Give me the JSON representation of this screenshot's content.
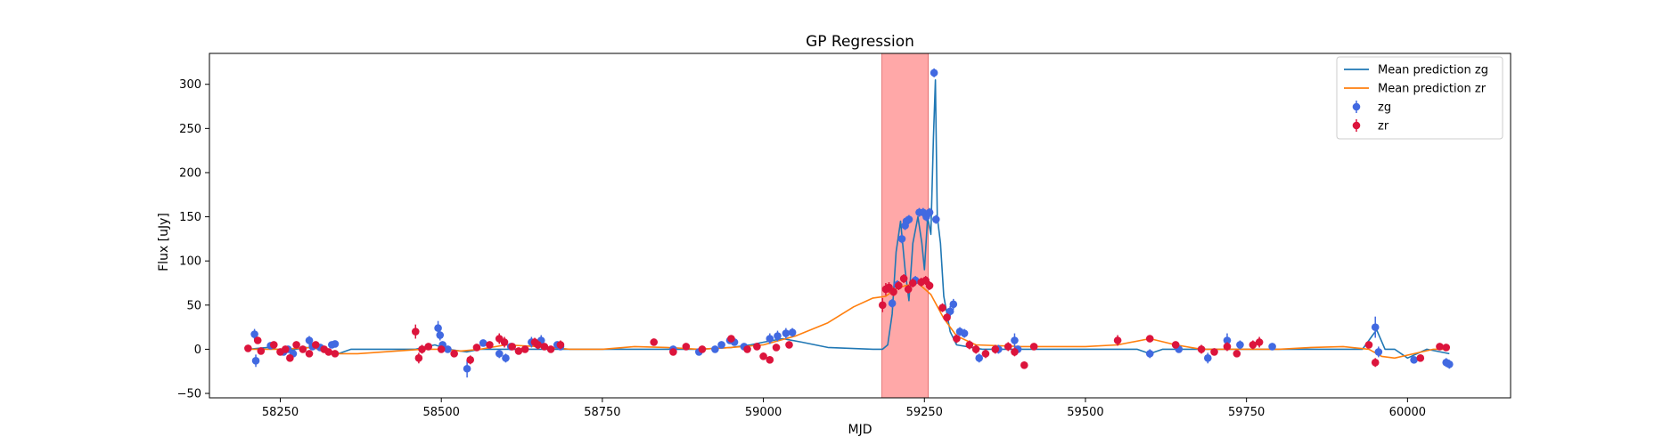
{
  "chart_data": {
    "type": "line",
    "title": "GP Regression",
    "xlabel": "MJD",
    "ylabel": "Flux [uJy]",
    "xlim": [
      58140,
      60160
    ],
    "ylim": [
      -55,
      335
    ],
    "xticks": [
      58250,
      58500,
      58750,
      59000,
      59250,
      59500,
      59750,
      60000
    ],
    "yticks": [
      -50,
      0,
      50,
      100,
      150,
      200,
      250,
      300
    ],
    "grid": false,
    "legend_position": "top-right",
    "highlight_span": {
      "x": [
        59184,
        59256
      ],
      "color": "#ff9e9e"
    },
    "colors": {
      "zg_line": "#1f77b4",
      "zr_line": "#ff7f0e",
      "zg_points": "#4169e1",
      "zr_points": "#dc143c"
    },
    "legend": [
      {
        "label": "Mean prediction zg",
        "kind": "line",
        "color": "#1f77b4"
      },
      {
        "label": "Mean prediction zr",
        "kind": "line",
        "color": "#ff7f0e"
      },
      {
        "label": "zg",
        "kind": "errorbar",
        "color": "#4169e1"
      },
      {
        "label": "zr",
        "kind": "errorbar",
        "color": "#dc143c"
      }
    ],
    "series": [
      {
        "name": "Mean prediction zg",
        "kind": "line",
        "color": "#1f77b4",
        "x": [
          58200,
          58230,
          58260,
          58290,
          58320,
          58340,
          58360,
          58460,
          58490,
          58510,
          58540,
          58560,
          58620,
          58680,
          58700,
          58800,
          58900,
          58950,
          58980,
          59000,
          59030,
          59060,
          59100,
          59170,
          59185,
          59193,
          59200,
          59206,
          59213,
          59220,
          59226,
          59232,
          59240,
          59246,
          59250,
          59255,
          59260,
          59264,
          59267,
          59270,
          59275,
          59280,
          59290,
          59300,
          59340,
          59400,
          59500,
          59580,
          59600,
          59620,
          59680,
          59720,
          59760,
          59800,
          59900,
          59930,
          59945,
          59952,
          59965,
          59980,
          60000,
          60030,
          60065
        ],
        "y": [
          0,
          2,
          -2,
          2,
          0,
          -5,
          0,
          0,
          5,
          0,
          -3,
          0,
          0,
          0,
          0,
          0,
          0,
          2,
          5,
          8,
          12,
          8,
          2,
          0,
          0,
          5,
          40,
          110,
          145,
          90,
          55,
          120,
          150,
          120,
          90,
          150,
          130,
          240,
          305,
          150,
          120,
          60,
          20,
          5,
          0,
          0,
          0,
          0,
          -5,
          0,
          0,
          0,
          0,
          0,
          0,
          0,
          15,
          22,
          0,
          0,
          -10,
          0,
          -5
        ]
      },
      {
        "name": "Mean prediction zr",
        "kind": "line",
        "color": "#ff7f0e",
        "x": [
          58200,
          58250,
          58300,
          58330,
          58370,
          58430,
          58470,
          58500,
          58530,
          58560,
          58600,
          58650,
          58700,
          58750,
          58800,
          58850,
          58900,
          58950,
          59000,
          59050,
          59100,
          59140,
          59170,
          59190,
          59205,
          59220,
          59240,
          59260,
          59280,
          59300,
          59330,
          59400,
          59500,
          59550,
          59600,
          59640,
          59680,
          59720,
          59760,
          59800,
          59850,
          59900,
          59940,
          59960,
          59980,
          60010,
          60040,
          60065
        ],
        "y": [
          0,
          0,
          2,
          -5,
          -5,
          -2,
          0,
          0,
          -2,
          0,
          5,
          3,
          0,
          0,
          3,
          2,
          0,
          2,
          5,
          15,
          30,
          48,
          58,
          60,
          68,
          72,
          75,
          62,
          35,
          15,
          5,
          3,
          3,
          5,
          12,
          5,
          0,
          0,
          0,
          0,
          2,
          3,
          0,
          -8,
          -10,
          -5,
          0,
          0
        ]
      },
      {
        "name": "zg",
        "kind": "errorbar",
        "color": "#4169e1",
        "x": [
          58210,
          58212,
          58235,
          58255,
          58262,
          58270,
          58295,
          58300,
          58312,
          58330,
          58335,
          58495,
          58498,
          58502,
          58510,
          58540,
          58565,
          58590,
          58600,
          58608,
          58640,
          58655,
          58680,
          58685,
          58860,
          58900,
          58925,
          58935,
          58948,
          58955,
          58970,
          59010,
          59022,
          59035,
          59045,
          59200,
          59208,
          59215,
          59220,
          59222,
          59226,
          59236,
          59242,
          59248,
          59253,
          59258,
          59265,
          59268,
          59290,
          59295,
          59305,
          59312,
          59335,
          59365,
          59390,
          59395,
          59600,
          59645,
          59690,
          59720,
          59740,
          59790,
          59950,
          59955,
          60010,
          60060,
          60065
        ],
        "y": [
          17,
          -13,
          4,
          -3,
          0,
          -5,
          10,
          3,
          2,
          5,
          6,
          24,
          16,
          5,
          0,
          -22,
          7,
          -5,
          -10,
          3,
          8,
          10,
          5,
          3,
          0,
          -3,
          0,
          5,
          10,
          8,
          3,
          12,
          15,
          18,
          19,
          52,
          73,
          125,
          140,
          145,
          147,
          78,
          155,
          155,
          150,
          155,
          313,
          147,
          43,
          51,
          20,
          18,
          -10,
          0,
          10,
          0,
          -5,
          0,
          -10,
          10,
          5,
          3,
          25,
          -3,
          -12,
          -15,
          -17
        ],
        "yerr": [
          6,
          7,
          3,
          3,
          3,
          3,
          5,
          3,
          3,
          4,
          4,
          8,
          6,
          3,
          3,
          10,
          4,
          5,
          5,
          3,
          6,
          6,
          4,
          3,
          3,
          3,
          3,
          3,
          4,
          3,
          3,
          6,
          6,
          6,
          5,
          5,
          5,
          5,
          5,
          5,
          5,
          5,
          5,
          5,
          5,
          5,
          5,
          5,
          6,
          6,
          5,
          5,
          5,
          5,
          8,
          4,
          5,
          4,
          6,
          8,
          5,
          4,
          12,
          6,
          3,
          5,
          5
        ]
      },
      {
        "name": "zr",
        "kind": "errorbar",
        "color": "#dc143c",
        "x": [
          58200,
          58215,
          58220,
          58240,
          58250,
          58258,
          58265,
          58275,
          58285,
          58295,
          58305,
          58318,
          58325,
          58335,
          58460,
          58465,
          58470,
          58480,
          58500,
          58520,
          58545,
          58555,
          58575,
          58590,
          58598,
          58610,
          58620,
          58630,
          58645,
          58650,
          58660,
          58670,
          58685,
          58830,
          58860,
          58880,
          58905,
          58950,
          58975,
          58990,
          59000,
          59010,
          59020,
          59040,
          59185,
          59190,
          59195,
          59202,
          59210,
          59218,
          59225,
          59232,
          59245,
          59252,
          59258,
          59278,
          59285,
          59300,
          59320,
          59330,
          59345,
          59360,
          59380,
          59390,
          59405,
          59420,
          59550,
          59600,
          59640,
          59680,
          59700,
          59720,
          59735,
          59760,
          59770,
          59940,
          59950,
          60020,
          60050,
          60060
        ],
        "y": [
          1,
          10,
          -2,
          5,
          -3,
          0,
          -10,
          5,
          0,
          -5,
          5,
          0,
          -3,
          -5,
          20,
          -10,
          0,
          3,
          0,
          -5,
          -12,
          2,
          5,
          12,
          8,
          3,
          -2,
          0,
          8,
          5,
          3,
          0,
          5,
          8,
          -3,
          3,
          0,
          12,
          0,
          3,
          -8,
          -12,
          2,
          5,
          50,
          68,
          70,
          65,
          72,
          80,
          68,
          75,
          76,
          78,
          72,
          47,
          36,
          12,
          5,
          0,
          -5,
          0,
          3,
          -3,
          -18,
          3,
          10,
          12,
          5,
          0,
          -3,
          3,
          -5,
          5,
          8,
          5,
          -15,
          -10,
          3,
          2
        ],
        "yerr": [
          3,
          4,
          4,
          3,
          3,
          3,
          4,
          3,
          3,
          3,
          3,
          3,
          3,
          3,
          8,
          6,
          5,
          4,
          4,
          4,
          5,
          4,
          4,
          6,
          6,
          4,
          4,
          4,
          5,
          5,
          4,
          4,
          5,
          4,
          4,
          4,
          4,
          4,
          4,
          4,
          4,
          4,
          4,
          4,
          8,
          7,
          6,
          5,
          5,
          5,
          5,
          5,
          5,
          5,
          5,
          5,
          5,
          5,
          5,
          5,
          5,
          5,
          5,
          5,
          4,
          3,
          6,
          4,
          4,
          5,
          4,
          5,
          4,
          5,
          6,
          4,
          5,
          3,
          4,
          4
        ]
      }
    ]
  }
}
